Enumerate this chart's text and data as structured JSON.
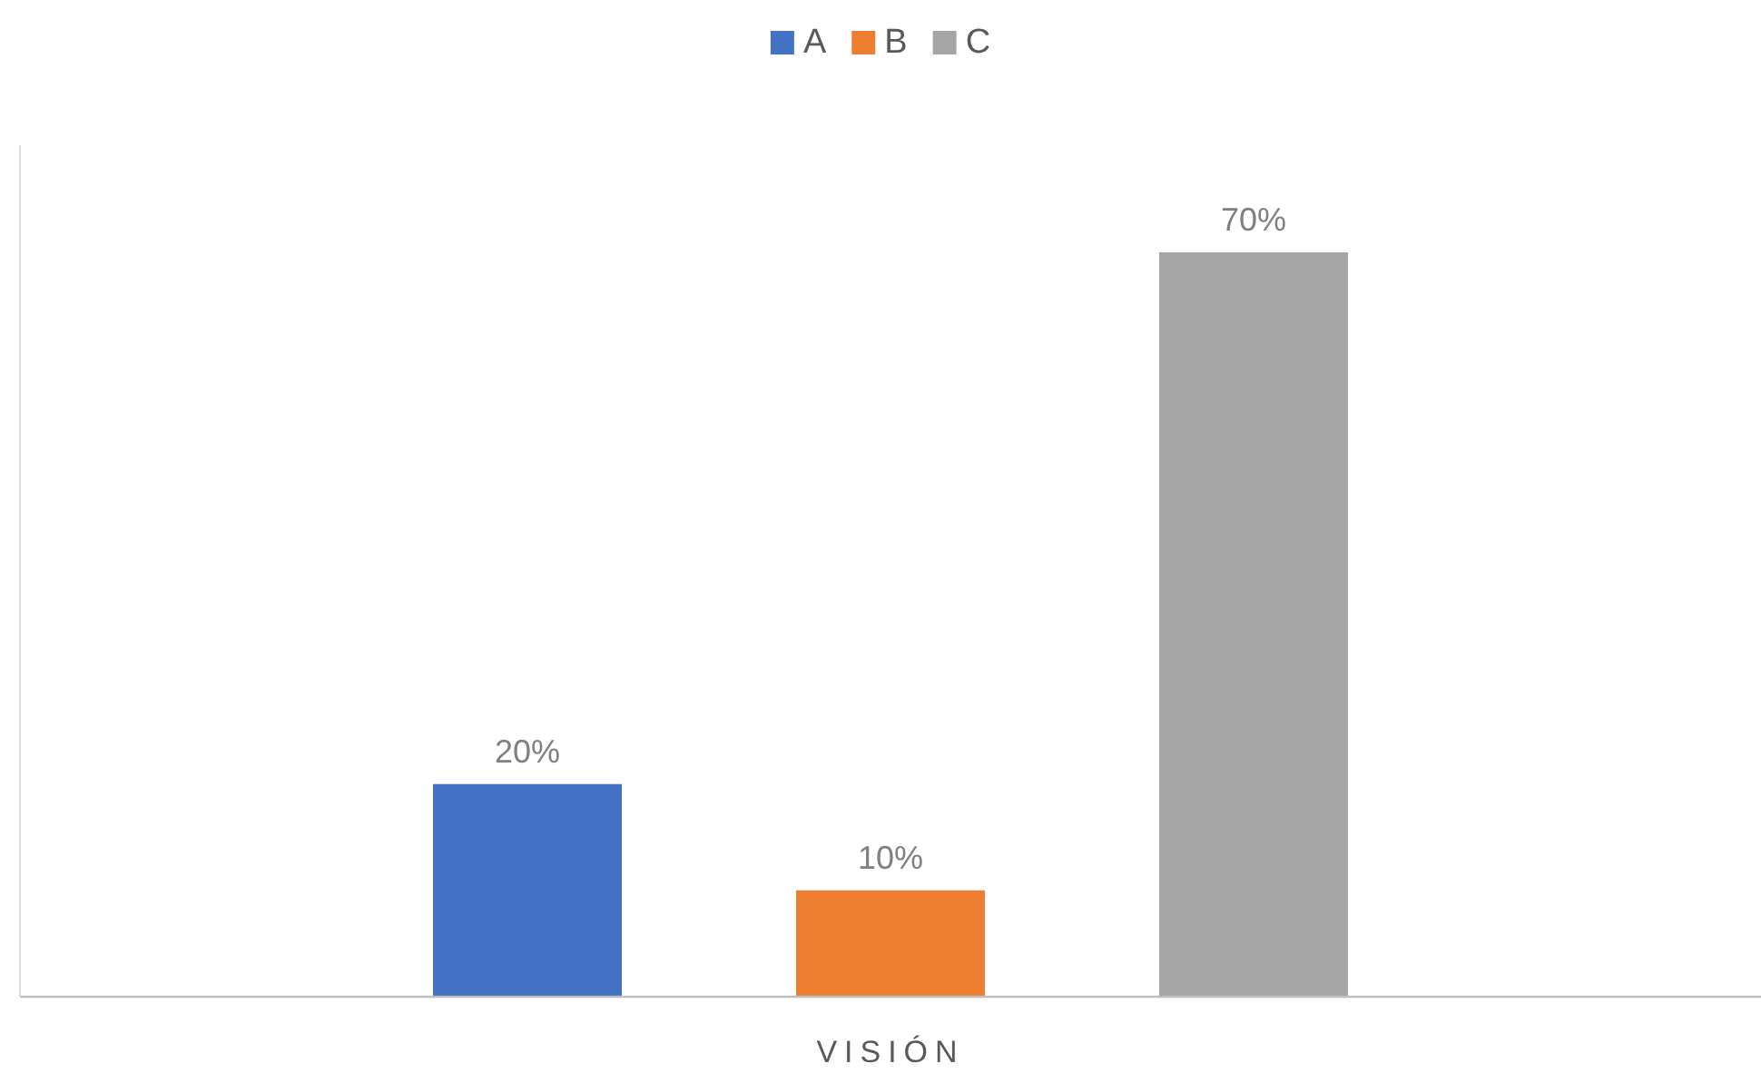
{
  "chart_data": {
    "type": "bar",
    "xlabel": "VISIÓN",
    "categories": [
      null,
      null,
      null
    ],
    "stacked": true,
    "series": [
      {
        "name": "A",
        "color": "#4472c4",
        "values": [
          20,
          null,
          null
        ],
        "value_labels": [
          "20%",
          null,
          null
        ]
      },
      {
        "name": "B",
        "color": "#ed7d31",
        "values": [
          null,
          10,
          null
        ],
        "value_labels": [
          null,
          "10%",
          null
        ]
      },
      {
        "name": "C",
        "color": "#a5a5a5",
        "values": [
          null,
          null,
          70
        ],
        "value_labels": [
          null,
          null,
          "70%"
        ]
      }
    ],
    "legend": "top"
  }
}
